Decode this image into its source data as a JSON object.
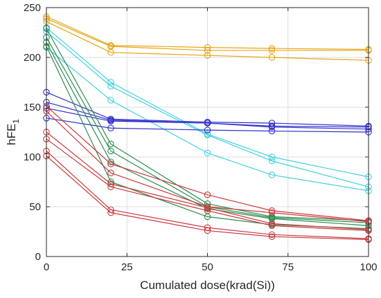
{
  "chart_data": {
    "type": "line",
    "xlabel": "Cumulated dose(krad(Si))",
    "ylabel": "hFE",
    "ylabel_subscript": "1",
    "xlim": [
      0,
      100
    ],
    "ylim": [
      0,
      250
    ],
    "xticks": [
      0,
      25,
      50,
      75,
      100
    ],
    "yticks": [
      0,
      50,
      100,
      150,
      200,
      250
    ],
    "x": [
      0,
      20,
      50,
      70,
      100
    ],
    "grid": true,
    "marker": "circle",
    "series": [
      {
        "color": "#E6A414",
        "values": [
          241,
          212,
          210,
          209,
          208
        ]
      },
      {
        "color": "#E6A414",
        "values": [
          239,
          211,
          207,
          207,
          207
        ]
      },
      {
        "color": "#E6A414",
        "values": [
          236,
          205,
          202,
          200,
          197
        ]
      },
      {
        "color": "#3FD0E0",
        "values": [
          230,
          175,
          123,
          100,
          80
        ]
      },
      {
        "color": "#3FD0E0",
        "values": [
          226,
          171,
          122,
          96,
          70
        ]
      },
      {
        "color": "#3FD0E0",
        "values": [
          210,
          157,
          104,
          82,
          66
        ]
      },
      {
        "color": "#2E2ECC",
        "values": [
          165,
          138,
          135,
          134,
          131
        ]
      },
      {
        "color": "#2E2ECC",
        "values": [
          155,
          137,
          134,
          131,
          130
        ]
      },
      {
        "color": "#2E2ECC",
        "values": [
          149,
          136,
          134,
          130,
          128
        ]
      },
      {
        "color": "#2E2ECC",
        "values": [
          139,
          129,
          127,
          126,
          125
        ]
      },
      {
        "color": "#2A8C50",
        "values": [
          229,
          113,
          53,
          40,
          36
        ]
      },
      {
        "color": "#2A8C50",
        "values": [
          220,
          106,
          50,
          39,
          34
        ]
      },
      {
        "color": "#2A8C50",
        "values": [
          215,
          95,
          48,
          38,
          31
        ]
      },
      {
        "color": "#2A8C50",
        "values": [
          211,
          75,
          40,
          32,
          28
        ]
      },
      {
        "color": "#C9383B",
        "values": [
          151,
          93,
          62,
          46,
          36
        ]
      },
      {
        "color": "#C9383B",
        "values": [
          146,
          84,
          50,
          44,
          35
        ]
      },
      {
        "color": "#C9383B",
        "values": [
          125,
          73,
          49,
          33,
          27
        ]
      },
      {
        "color": "#C9383B",
        "values": [
          118,
          70,
          46,
          31,
          26
        ]
      },
      {
        "color": "#C9383B",
        "values": [
          106,
          47,
          29,
          22,
          18
        ]
      },
      {
        "color": "#C9383B",
        "values": [
          101,
          44,
          26,
          20,
          17
        ]
      }
    ]
  }
}
